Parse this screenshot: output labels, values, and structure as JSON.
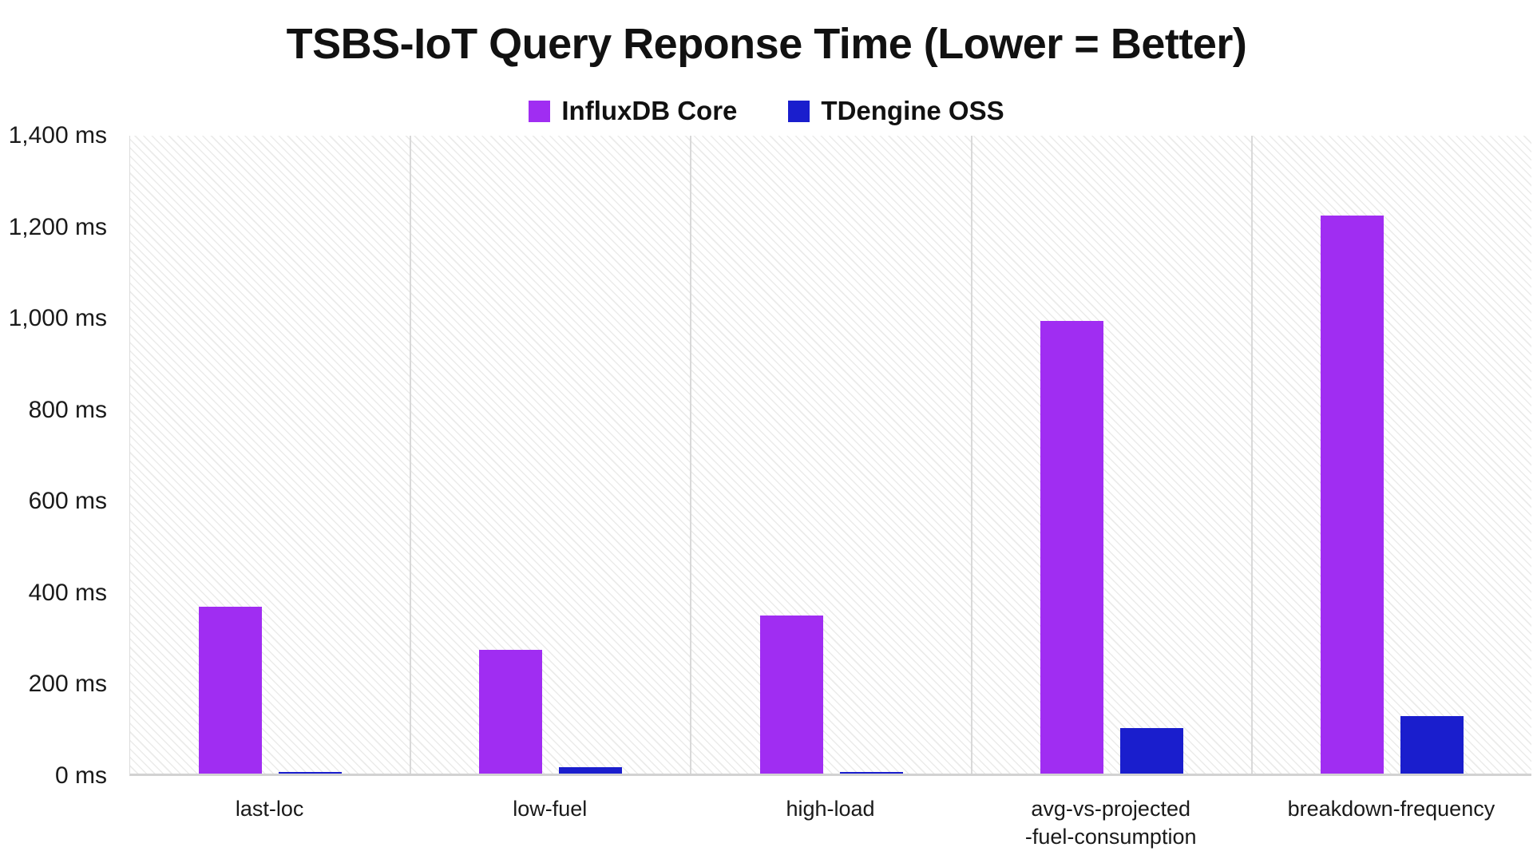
{
  "page": {
    "background_color": "#ffffff",
    "text_color": "#161616"
  },
  "chart_data": {
    "type": "bar",
    "title": "TSBS-IoT Query Reponse Time (Lower = Better)",
    "unit": "ms",
    "categories": [
      "last-loc",
      "low-fuel",
      "high-load",
      "avg-vs-projected\n-fuel-consumption",
      "breakdown-frequency"
    ],
    "series": [
      {
        "name": "InfluxDB Core",
        "color": "#a02df2",
        "values": [
          365,
          270,
          345,
          990,
          1220
        ]
      },
      {
        "name": "TDengine OSS",
        "color": "#1a1ecd",
        "values": [
          2,
          14,
          3,
          100,
          125
        ]
      }
    ],
    "ylim": [
      0,
      1400
    ],
    "ytick_step": 200,
    "yticks": [
      {
        "value": 0,
        "label": "0 ms"
      },
      {
        "value": 200,
        "label": "200 ms"
      },
      {
        "value": 400,
        "label": "400 ms"
      },
      {
        "value": 600,
        "label": "600 ms"
      },
      {
        "value": 800,
        "label": "800 ms"
      },
      {
        "value": 1000,
        "label": "1,000 ms"
      },
      {
        "value": 1200,
        "label": "1,200 ms"
      },
      {
        "value": 1400,
        "label": "1,400 ms"
      }
    ],
    "legend_position": "top-center",
    "grid": "no horizontal gridlines; light vertical category separators; diagonal hatch plot background",
    "plot_background_hatch_color": "#ebebea",
    "separator_color": "#d9d9d9",
    "baseline_color": "#d2d2d2"
  }
}
